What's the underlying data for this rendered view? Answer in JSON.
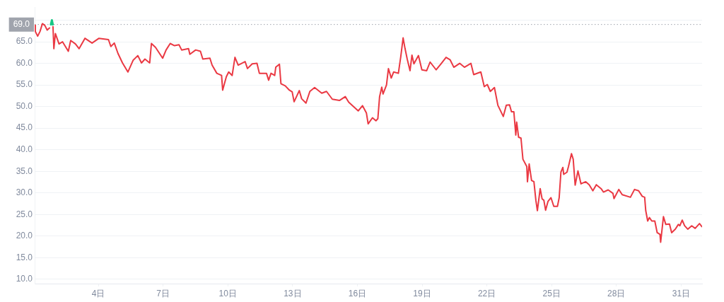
{
  "chart_data": {
    "type": "line",
    "xlim": [
      1.05,
      31.97
    ],
    "xticks": [
      {
        "value": 4,
        "label": "4日"
      },
      {
        "value": 7,
        "label": "7日"
      },
      {
        "value": 10,
        "label": "10日"
      },
      {
        "value": 13,
        "label": "13日"
      },
      {
        "value": 16,
        "label": "16日"
      },
      {
        "value": 19,
        "label": "19日"
      },
      {
        "value": 22,
        "label": "22日"
      },
      {
        "value": 25,
        "label": "25日"
      },
      {
        "value": 28,
        "label": "28日"
      },
      {
        "value": 31,
        "label": "31日"
      }
    ],
    "ylim": [
      9,
      73
    ],
    "yticks": [
      {
        "value": 10,
        "label": "10.0"
      },
      {
        "value": 15,
        "label": "15.0"
      },
      {
        "value": 20,
        "label": "20.0"
      },
      {
        "value": 25,
        "label": "25.0"
      },
      {
        "value": 30,
        "label": "30.0"
      },
      {
        "value": 35,
        "label": "35.0"
      },
      {
        "value": 40,
        "label": "40.0"
      },
      {
        "value": 45,
        "label": "45.0"
      },
      {
        "value": 50,
        "label": "50.0"
      },
      {
        "value": 55,
        "label": "55.0"
      },
      {
        "value": 60,
        "label": "60.0"
      },
      {
        "value": 65,
        "label": "65.0"
      },
      {
        "value": 70,
        "label": null
      }
    ],
    "grid": "y",
    "legend": false,
    "marker": "none",
    "ref_lines": [
      {
        "axis": "y",
        "value": 69.0,
        "label": "69.0",
        "color": "#a0a4ad",
        "line_style": "dotted"
      }
    ],
    "series": [
      {
        "color": "#ea3943",
        "x": [
          1.06,
          1.08,
          1.19,
          1.3,
          1.41,
          1.52,
          1.63,
          1.74,
          1.85,
          1.9,
          1.94,
          2.01,
          2.18,
          2.34,
          2.61,
          2.72,
          2.94,
          3.11,
          3.38,
          3.71,
          4.03,
          4.47,
          4.58,
          4.74,
          4.91,
          5.12,
          5.37,
          5.61,
          5.83,
          6.0,
          6.16,
          6.38,
          6.46,
          6.65,
          6.98,
          7.14,
          7.33,
          7.53,
          7.74,
          7.86,
          8.18,
          8.24,
          8.51,
          8.73,
          8.84,
          9.17,
          9.27,
          9.49,
          9.71,
          9.76,
          9.93,
          10.04,
          10.2,
          10.33,
          10.48,
          10.8,
          10.91,
          11.13,
          11.35,
          11.46,
          11.79,
          11.89,
          12.0,
          12.17,
          12.22,
          12.39,
          12.46,
          12.66,
          12.85,
          12.98,
          13.07,
          13.31,
          13.42,
          13.62,
          13.8,
          14.02,
          14.35,
          14.57,
          14.84,
          15.17,
          15.44,
          15.6,
          16.04,
          16.24,
          16.42,
          16.5,
          16.7,
          16.86,
          16.95,
          17.03,
          17.13,
          17.19,
          17.35,
          17.44,
          17.57,
          17.68,
          17.9,
          18.01,
          18.12,
          18.21,
          18.31,
          18.44,
          18.53,
          18.62,
          18.83,
          18.99,
          19.21,
          19.37,
          19.65,
          19.86,
          20.11,
          20.3,
          20.47,
          20.74,
          20.96,
          21.26,
          21.39,
          21.72,
          21.88,
          22.02,
          22.16,
          22.35,
          22.51,
          22.76,
          22.9,
          23.05,
          23.14,
          23.25,
          23.34,
          23.38,
          23.47,
          23.58,
          23.67,
          23.85,
          23.88,
          23.96,
          24.07,
          24.18,
          24.27,
          24.34,
          24.47,
          24.56,
          24.64,
          24.72,
          24.83,
          24.97,
          25.1,
          25.27,
          25.35,
          25.43,
          25.52,
          25.56,
          25.71,
          25.78,
          25.92,
          26.0,
          26.09,
          26.22,
          26.36,
          26.58,
          26.74,
          26.91,
          27.07,
          27.29,
          27.4,
          27.62,
          27.84,
          27.89,
          28.11,
          28.27,
          28.65,
          28.84,
          29.03,
          29.2,
          29.31,
          29.36,
          29.45,
          29.53,
          29.64,
          29.78,
          29.89,
          30.02,
          30.05,
          30.18,
          30.29,
          30.46,
          30.56,
          30.73,
          30.87,
          30.94,
          31.05,
          31.16,
          31.31,
          31.49,
          31.65,
          31.85,
          31.96
        ],
        "values": [
          68.8,
          67.4,
          66.3,
          67.4,
          69.2,
          68.8,
          67.7,
          68.2,
          null,
          68.5,
          63.4,
          66.9,
          64.5,
          65.0,
          62.8,
          65.3,
          64.5,
          63.4,
          65.8,
          64.7,
          65.8,
          65.5,
          63.9,
          64.7,
          62.3,
          60.1,
          58.0,
          60.7,
          61.8,
          60.1,
          61.0,
          60.1,
          64.6,
          63.7,
          61.2,
          63.1,
          64.6,
          64.1,
          64.3,
          63.1,
          63.4,
          62.1,
          63.1,
          62.8,
          61.0,
          61.2,
          59.6,
          57.7,
          57.2,
          53.8,
          56.9,
          58.0,
          57.2,
          61.4,
          59.6,
          60.4,
          58.8,
          59.9,
          60.0,
          57.7,
          57.7,
          56.1,
          57.7,
          57.2,
          59.1,
          59.8,
          55.3,
          54.8,
          53.8,
          53.4,
          51.1,
          53.7,
          51.8,
          50.8,
          53.5,
          54.4,
          53.1,
          53.5,
          51.7,
          51.4,
          52.3,
          51.0,
          49.0,
          50.2,
          48.5,
          46.0,
          47.4,
          46.7,
          47.2,
          52.3,
          54.5,
          52.9,
          55.0,
          58.8,
          56.6,
          58.0,
          57.7,
          61.5,
          65.9,
          63.4,
          61.0,
          58.3,
          61.9,
          59.9,
          61.8,
          58.5,
          58.3,
          60.3,
          58.5,
          59.8,
          61.4,
          60.8,
          59.1,
          60.0,
          59.1,
          60.0,
          57.4,
          58.0,
          54.6,
          55.1,
          53.5,
          54.4,
          50.3,
          47.7,
          50.3,
          50.4,
          48.8,
          48.8,
          43.4,
          46.4,
          42.9,
          42.7,
          37.8,
          36.1,
          32.6,
          36.7,
          32.9,
          32.6,
          28.3,
          25.9,
          31.0,
          28.6,
          28.3,
          26.0,
          28.0,
          28.9,
          26.9,
          26.9,
          28.9,
          34.8,
          35.9,
          34.3,
          34.8,
          36.1,
          39.1,
          37.8,
          31.8,
          35.1,
          32.1,
          32.6,
          31.9,
          30.5,
          31.9,
          31.0,
          30.2,
          30.7,
          29.9,
          28.7,
          30.8,
          29.6,
          29.0,
          30.8,
          30.5,
          29.2,
          29.0,
          25.9,
          23.5,
          24.3,
          23.5,
          23.5,
          20.8,
          20.4,
          18.6,
          24.5,
          22.7,
          22.8,
          20.8,
          21.6,
          22.7,
          22.4,
          23.7,
          22.4,
          21.6,
          22.4,
          21.8,
          22.9,
          22.2
        ]
      },
      {
        "color": "#16c784",
        "x": [
          1.8,
          1.85,
          1.89
        ],
        "values": [
          69.0,
          70.0,
          69.0
        ]
      }
    ]
  }
}
